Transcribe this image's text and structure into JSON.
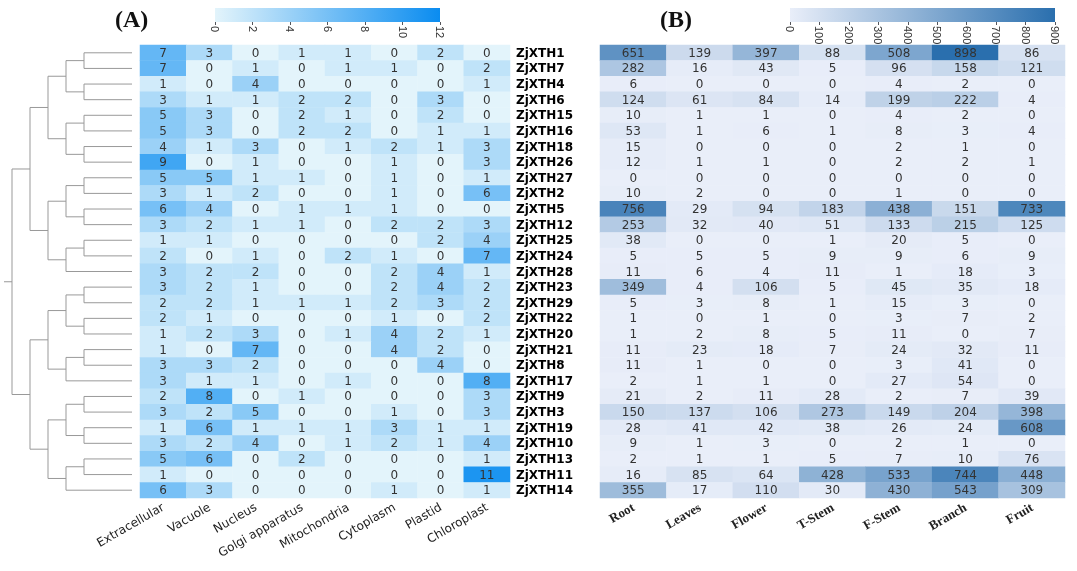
{
  "chart_data": [
    {
      "type": "heatmap",
      "title": "(A)",
      "categories": [
        "Extracellular",
        "Vacuole",
        "Nucleus",
        "Golgi apparatus",
        "Mitochondria",
        "Cytoplasm",
        "Plastid",
        "Chloroplast"
      ],
      "y_categories": [
        "ZjXTH1",
        "ZjXTH7",
        "ZjXTH4",
        "ZjXTH6",
        "ZjXTH15",
        "ZjXTH16",
        "ZjXTH18",
        "ZjXTH26",
        "ZjXTH27",
        "ZjXTH2",
        "ZjXTH5",
        "ZjXTH12",
        "ZjXTH25",
        "ZjXTH24",
        "ZjXTH28",
        "ZjXTH23",
        "ZjXTH29",
        "ZjXTH22",
        "ZjXTH20",
        "ZjXTH21",
        "ZjXTH8",
        "ZjXTH17",
        "ZjXTH9",
        "ZjXTH3",
        "ZjXTH19",
        "ZjXTH10",
        "ZjXTH13",
        "ZjXTH11",
        "ZjXTH14"
      ],
      "cells": [
        [
          7,
          3,
          0,
          1,
          1,
          0,
          2,
          0
        ],
        [
          7,
          0,
          1,
          0,
          1,
          1,
          0,
          2
        ],
        [
          1,
          0,
          4,
          0,
          0,
          0,
          0,
          1
        ],
        [
          3,
          1,
          1,
          2,
          2,
          0,
          3,
          0
        ],
        [
          5,
          3,
          0,
          2,
          1,
          0,
          2,
          0
        ],
        [
          5,
          3,
          0,
          2,
          2,
          0,
          1,
          1
        ],
        [
          4,
          1,
          3,
          0,
          1,
          2,
          1,
          3
        ],
        [
          9,
          0,
          1,
          0,
          0,
          1,
          0,
          3
        ],
        [
          5,
          5,
          1,
          1,
          0,
          1,
          0,
          1
        ],
        [
          3,
          1,
          2,
          0,
          0,
          1,
          0,
          6
        ],
        [
          6,
          4,
          0,
          1,
          1,
          1,
          0,
          0
        ],
        [
          3,
          2,
          1,
          1,
          0,
          2,
          2,
          3
        ],
        [
          1,
          1,
          0,
          0,
          0,
          0,
          2,
          4
        ],
        [
          2,
          0,
          1,
          0,
          2,
          1,
          0,
          7
        ],
        [
          3,
          2,
          2,
          0,
          0,
          2,
          4,
          1
        ],
        [
          3,
          2,
          1,
          0,
          0,
          2,
          4,
          2
        ],
        [
          2,
          2,
          1,
          1,
          1,
          2,
          3,
          2
        ],
        [
          2,
          1,
          0,
          0,
          0,
          1,
          0,
          2
        ],
        [
          1,
          2,
          3,
          0,
          1,
          4,
          2,
          1
        ],
        [
          1,
          0,
          7,
          0,
          0,
          4,
          2,
          0
        ],
        [
          3,
          3,
          2,
          0,
          0,
          0,
          4,
          0
        ],
        [
          3,
          1,
          1,
          0,
          1,
          0,
          0,
          8
        ],
        [
          2,
          8,
          0,
          1,
          0,
          0,
          0,
          3
        ],
        [
          3,
          2,
          5,
          0,
          0,
          1,
          0,
          3
        ],
        [
          1,
          6,
          1,
          1,
          1,
          3,
          1,
          1
        ],
        [
          3,
          2,
          4,
          0,
          1,
          2,
          1,
          4
        ],
        [
          5,
          6,
          0,
          2,
          0,
          0,
          0,
          1
        ],
        [
          1,
          0,
          0,
          0,
          0,
          0,
          0,
          11
        ],
        [
          6,
          3,
          0,
          0,
          0,
          1,
          0,
          1
        ]
      ],
      "clim": [
        0,
        12
      ],
      "cticks": [
        0,
        2,
        4,
        6,
        8,
        10,
        12
      ],
      "data_labels": true
    },
    {
      "type": "heatmap",
      "title": "(B)",
      "categories": [
        "Root",
        "Leaves",
        "Flower",
        "T-Stem",
        "F-Stem",
        "Branch",
        "Fruit"
      ],
      "y_categories": [
        "ZjXTH1",
        "ZjXTH7",
        "ZjXTH4",
        "ZjXTH6",
        "ZjXTH15",
        "ZjXTH16",
        "ZjXTH18",
        "ZjXTH26",
        "ZjXTH27",
        "ZjXTH2",
        "ZjXTH5",
        "ZjXTH12",
        "ZjXTH25",
        "ZjXTH24",
        "ZjXTH28",
        "ZjXTH23",
        "ZjXTH29",
        "ZjXTH22",
        "ZjXTH20",
        "ZjXTH21",
        "ZjXTH8",
        "ZjXTH17",
        "ZjXTH9",
        "ZjXTH3",
        "ZjXTH19",
        "ZjXTH10",
        "ZjXTH13",
        "ZjXTH11",
        "ZjXTH14"
      ],
      "cells": [
        [
          651,
          139,
          397,
          88,
          508,
          898,
          86
        ],
        [
          282,
          16,
          43,
          5,
          96,
          158,
          121
        ],
        [
          6,
          0,
          0,
          0,
          4,
          2,
          0
        ],
        [
          124,
          61,
          84,
          14,
          199,
          222,
          4
        ],
        [
          10,
          1,
          1,
          0,
          4,
          2,
          0
        ],
        [
          53,
          1,
          6,
          1,
          8,
          3,
          4
        ],
        [
          15,
          0,
          0,
          0,
          2,
          1,
          0
        ],
        [
          12,
          1,
          1,
          0,
          2,
          2,
          1
        ],
        [
          0,
          0,
          0,
          0,
          0,
          0,
          0
        ],
        [
          10,
          2,
          0,
          0,
          1,
          0,
          0
        ],
        [
          756,
          29,
          94,
          183,
          438,
          151,
          733
        ],
        [
          253,
          32,
          40,
          51,
          133,
          215,
          125
        ],
        [
          38,
          0,
          0,
          1,
          20,
          5,
          0
        ],
        [
          5,
          5,
          5,
          9,
          9,
          6,
          9
        ],
        [
          11,
          6,
          4,
          11,
          1,
          18,
          3
        ],
        [
          349,
          4,
          106,
          5,
          45,
          35,
          18
        ],
        [
          5,
          3,
          8,
          1,
          15,
          3,
          0
        ],
        [
          1,
          0,
          1,
          0,
          3,
          7,
          2
        ],
        [
          1,
          2,
          8,
          5,
          11,
          0,
          7
        ],
        [
          11,
          23,
          18,
          7,
          24,
          32,
          11
        ],
        [
          11,
          1,
          0,
          0,
          3,
          41,
          0
        ],
        [
          2,
          1,
          1,
          0,
          27,
          54,
          0
        ],
        [
          21,
          2,
          11,
          28,
          2,
          7,
          39
        ],
        [
          150,
          137,
          106,
          273,
          149,
          204,
          398
        ],
        [
          28,
          41,
          42,
          38,
          26,
          24,
          608
        ],
        [
          9,
          1,
          3,
          0,
          2,
          1,
          0
        ],
        [
          2,
          1,
          1,
          5,
          7,
          10,
          76
        ],
        [
          16,
          85,
          64,
          428,
          533,
          744,
          448
        ],
        [
          355,
          17,
          110,
          30,
          430,
          543,
          309
        ]
      ],
      "clim": [
        0,
        900
      ],
      "cticks": [
        0,
        100,
        200,
        300,
        400,
        500,
        600,
        700,
        800,
        900
      ],
      "data_labels": true,
      "tick_labels": "x"
    }
  ]
}
